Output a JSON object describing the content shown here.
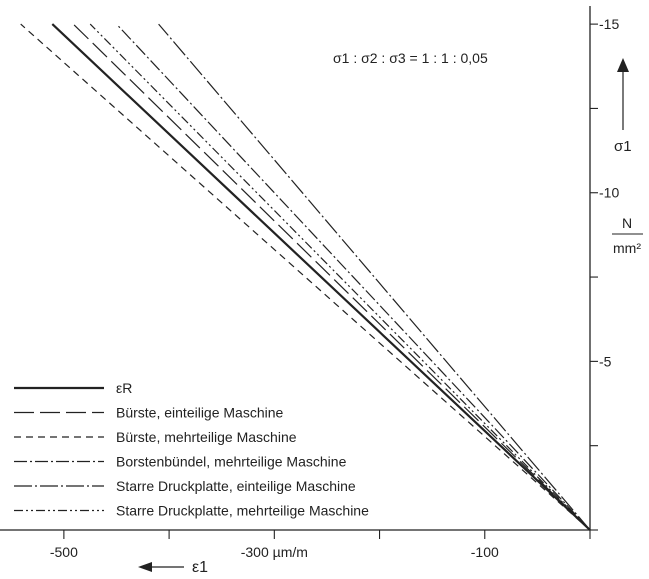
{
  "chart_data": {
    "type": "line",
    "annotation": "σ1 : σ2 : σ3 = 1 : 1 : 0,05",
    "x_axis": {
      "label": "ε1",
      "unit": "µm/m",
      "ticks": [
        -500,
        -400,
        -300,
        -200,
        -100,
        0
      ],
      "tick_labels": [
        {
          "value": -500,
          "text": "-500"
        },
        {
          "value": -300,
          "text": "-300 µm/m"
        },
        {
          "value": -100,
          "text": "-100"
        }
      ],
      "range": [
        -555,
        0
      ]
    },
    "y_axis": {
      "label": "σ1",
      "unit_num": "N",
      "unit_den": "mm²",
      "ticks": [
        0,
        2.5,
        5,
        7.5,
        10,
        12.5,
        15
      ],
      "tick_labels": [
        {
          "value": 5,
          "text": "-5"
        },
        {
          "value": 10,
          "text": "-10"
        },
        {
          "value": 15,
          "text": "-15"
        }
      ],
      "range": [
        0,
        15.3
      ],
      "position": "right"
    },
    "grid": false,
    "legend_position": "bottom-left",
    "series": [
      {
        "name": "εR",
        "dash": "",
        "width": 2.2,
        "points": [
          [
            0,
            0
          ],
          [
            -511,
            15
          ]
        ]
      },
      {
        "name": "Bürste, einteilige Maschine",
        "dash": "20 6",
        "width": 1.2,
        "points": [
          [
            0,
            0
          ],
          [
            -491,
            15
          ]
        ]
      },
      {
        "name": "Bürste, mehrteilige Maschine",
        "dash": "7 5",
        "width": 1.2,
        "points": [
          [
            0,
            0
          ],
          [
            -541,
            15
          ]
        ]
      },
      {
        "name": "Borstenbündel, mehrteilige Maschine",
        "dash": "13 3 2 3",
        "width": 1.2,
        "points": [
          [
            0,
            0
          ],
          [
            -450,
            15
          ]
        ]
      },
      {
        "name": "Starre Druckplatte, einteilige Maschine",
        "dash": "18 3 2 3",
        "width": 1.2,
        "points": [
          [
            0,
            0
          ],
          [
            -410,
            15
          ]
        ]
      },
      {
        "name": "Starre Druckplatte, mehrteilige Maschine",
        "dash": "9 3 2 3 2 3",
        "width": 1.2,
        "points": [
          [
            0,
            0
          ],
          [
            -475,
            15
          ]
        ]
      }
    ]
  }
}
